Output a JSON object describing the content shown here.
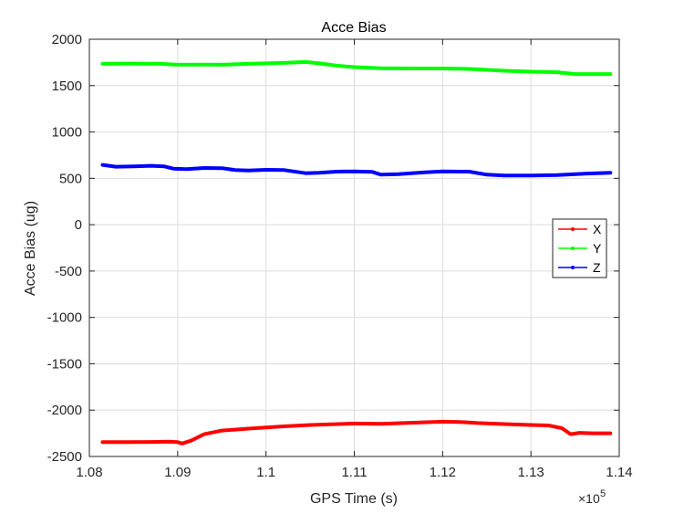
{
  "chart_data": {
    "type": "line",
    "title": "Acce Bias",
    "xlabel": "GPS Time (s)",
    "ylabel": "Acce Bias (ug)",
    "xlim": [
      108000,
      114000
    ],
    "ylim": [
      -2500,
      2000
    ],
    "x_ticks": [
      108000,
      109000,
      110000,
      111000,
      112000,
      113000,
      114000
    ],
    "x_tick_labels": [
      "1.08",
      "1.09",
      "1.1",
      "1.11",
      "1.12",
      "1.13",
      "1.14"
    ],
    "x_exponent_base": "×10",
    "x_exponent_power": "5",
    "y_ticks": [
      2000,
      1500,
      1000,
      500,
      0,
      -500,
      -1000,
      -1500,
      -2000,
      -2500
    ],
    "y_tick_labels": [
      "2000",
      "1500",
      "1000",
      "500",
      "0",
      "-500",
      "-1000",
      "-1500",
      "-2000",
      "-2500"
    ],
    "grid": true,
    "legend_position": "right",
    "series": [
      {
        "name": "X",
        "color": "#ff0000",
        "x": [
          108150,
          108400,
          108700,
          108900,
          109000,
          109050,
          109150,
          109300,
          109500,
          109800,
          110200,
          110500,
          111000,
          111300,
          111700,
          112000,
          112200,
          112400,
          112700,
          113000,
          113200,
          113350,
          113450,
          113550,
          113700,
          113900
        ],
        "y": [
          -2345,
          -2345,
          -2343,
          -2340,
          -2345,
          -2360,
          -2330,
          -2260,
          -2220,
          -2200,
          -2175,
          -2160,
          -2145,
          -2148,
          -2135,
          -2125,
          -2128,
          -2140,
          -2150,
          -2160,
          -2165,
          -2195,
          -2260,
          -2245,
          -2250,
          -2250
        ]
      },
      {
        "name": "Y",
        "color": "#00ff00",
        "x": [
          108150,
          108500,
          108800,
          109000,
          109300,
          109500,
          109800,
          110200,
          110450,
          110600,
          110800,
          111000,
          111300,
          111700,
          112000,
          112300,
          112700,
          113000,
          113300,
          113500,
          113900
        ],
        "y": [
          1735,
          1738,
          1735,
          1725,
          1727,
          1725,
          1735,
          1745,
          1755,
          1740,
          1715,
          1700,
          1688,
          1685,
          1685,
          1680,
          1660,
          1650,
          1645,
          1625,
          1625
        ]
      },
      {
        "name": "Z",
        "color": "#0000ff",
        "x": [
          108150,
          108300,
          108500,
          108700,
          108850,
          108950,
          109100,
          109300,
          109500,
          109650,
          109800,
          110000,
          110200,
          110450,
          110600,
          110800,
          111000,
          111200,
          111300,
          111500,
          111800,
          112000,
          112300,
          112500,
          112700,
          113000,
          113300,
          113600,
          113900
        ],
        "y": [
          645,
          625,
          628,
          635,
          628,
          605,
          600,
          612,
          610,
          590,
          585,
          592,
          590,
          555,
          560,
          572,
          575,
          570,
          540,
          545,
          565,
          575,
          572,
          540,
          530,
          530,
          535,
          550,
          560
        ]
      }
    ]
  }
}
